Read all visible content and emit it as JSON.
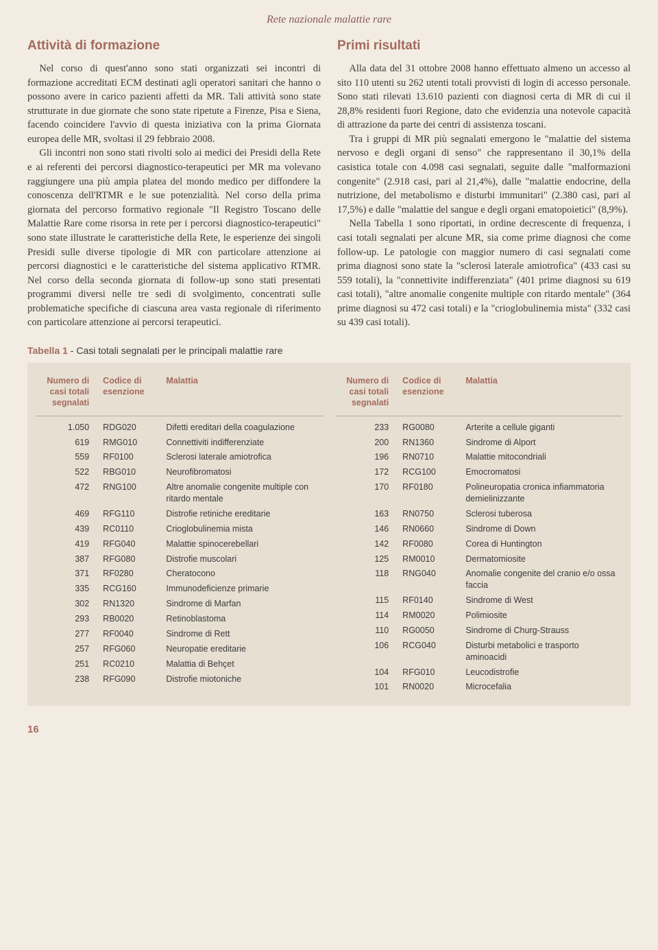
{
  "journal_header": "Rete nazionale malattie rare",
  "left_section": {
    "title": "Attività di formazione",
    "paragraphs": [
      "Nel corso di quest'anno sono stati organizzati sei incontri di formazione accreditati ECM destinati agli operatori sanitari che hanno o possono avere in carico pazienti affetti da MR. Tali attività sono state strutturate in due giornate che sono state ripetute a Firenze, Pisa e Siena, facendo coincidere l'avvio di questa iniziativa con la prima Giornata europea delle MR, svoltasi il 29 febbraio 2008.",
      "Gli incontri non sono stati rivolti solo ai medici dei Presidi della Rete e ai referenti dei percorsi diagnostico-terapeutici per MR ma volevano raggiungere una più ampia platea del mondo medico per diffondere la conoscenza dell'RTMR e le sue potenzialità. Nel corso della prima giornata del percorso formativo regionale \"Il Registro Toscano delle Malattie Rare come risorsa in rete per i percorsi diagnostico-terapeutici\" sono state illustrate le caratteristiche della Rete, le esperienze dei singoli Presidi sulle diverse tipologie di MR con particolare attenzione ai percorsi diagnostici e le caratteristiche del sistema applicativo RTMR. Nel corso della seconda giornata di follow-up sono stati presentati programmi diversi nelle tre sedi di svolgimento, concentrati sulle problematiche specifiche di ciascuna area vasta regionale di riferimento con particolare attenzione ai percorsi terapeutici."
    ]
  },
  "right_section": {
    "title": "Primi risultati",
    "paragraphs": [
      "Alla data del 31 ottobre 2008 hanno effettuato almeno un accesso al sito 110 utenti su 262 utenti totali provvisti di login di accesso personale. Sono stati rilevati 13.610 pazienti con diagnosi certa di MR di cui il 28,8% residenti fuori Regione, dato che evidenzia una notevole capacità di attrazione da parte dei centri di assistenza toscani.",
      "Tra i gruppi di MR più segnalati emergono le \"malattie del sistema nervoso e degli organi di senso\" che rappresentano il 30,1% della casistica totale con 4.098 casi segnalati, seguite dalle \"malformazioni congenite\" (2.918 casi, pari al 21,4%), dalle \"malattie endocrine, della nutrizione, del metabolismo e disturbi immunitari\" (2.380 casi, pari al 17,5%) e dalle \"malattie del sangue e degli organi ematopoietici\" (8,9%).",
      "Nella Tabella 1 sono riportati, in ordine decrescente di frequenza, i casi totali segnalati per alcune MR, sia come prime diagnosi che come follow-up. Le patologie con maggior numero di casi segnalati come prima diagnosi sono state la \"sclerosi laterale amiotrofica\" (433 casi su 559 totali), la \"connettivite indifferenziata\" (401 prime diagnosi su 619 casi totali), \"altre anomalie congenite multiple con ritardo mentale\" (364 prime diagnosi su 472 casi totali) e la \"crioglobulinemia mista\" (332 casi su 439 casi totali)."
    ]
  },
  "table": {
    "caption_label": "Tabella 1",
    "caption_text": " - Casi totali segnalati per le principali malattie rare",
    "headers": {
      "num": "Numero di casi totali segnalati",
      "code": "Codice di esenzione",
      "disease": "Malattia"
    },
    "left_rows": [
      {
        "num": "1.050",
        "code": "RDG020",
        "disease": "Difetti ereditari della coagulazione"
      },
      {
        "num": "619",
        "code": "RMG010",
        "disease": "Connettiviti indifferenziate"
      },
      {
        "num": "559",
        "code": "RF0100",
        "disease": "Sclerosi laterale amiotrofica"
      },
      {
        "num": "522",
        "code": "RBG010",
        "disease": "Neurofibromatosi"
      },
      {
        "num": "472",
        "code": "RNG100",
        "disease": "Altre anomalie congenite multiple con ritardo mentale"
      },
      {
        "num": "469",
        "code": "RFG110",
        "disease": "Distrofie retiniche ereditarie"
      },
      {
        "num": "439",
        "code": "RC0110",
        "disease": "Crioglobulinemia mista"
      },
      {
        "num": "419",
        "code": "RFG040",
        "disease": "Malattie spinocerebellari"
      },
      {
        "num": "387",
        "code": "RFG080",
        "disease": "Distrofie muscolari"
      },
      {
        "num": "371",
        "code": "RF0280",
        "disease": "Cheratocono"
      },
      {
        "num": "335",
        "code": "RCG160",
        "disease": "Immunodeficienze primarie"
      },
      {
        "num": "302",
        "code": "RN1320",
        "disease": "Sindrome di Marfan"
      },
      {
        "num": "293",
        "code": "RB0020",
        "disease": "Retinoblastoma"
      },
      {
        "num": "277",
        "code": "RF0040",
        "disease": "Sindrome di Rett"
      },
      {
        "num": "257",
        "code": "RFG060",
        "disease": "Neuropatie ereditarie"
      },
      {
        "num": "251",
        "code": "RC0210",
        "disease": "Malattia di Behçet"
      },
      {
        "num": "238",
        "code": "RFG090",
        "disease": "Distrofie miotoniche"
      }
    ],
    "right_rows": [
      {
        "num": "233",
        "code": "RG0080",
        "disease": "Arterite a cellule giganti"
      },
      {
        "num": "200",
        "code": "RN1360",
        "disease": "Sindrome di Alport"
      },
      {
        "num": "196",
        "code": "RN0710",
        "disease": "Malattie mitocondriali"
      },
      {
        "num": "172",
        "code": "RCG100",
        "disease": "Emocromatosi"
      },
      {
        "num": "170",
        "code": "RF0180",
        "disease": "Polineuropatia cronica infiammatoria demielinizzante"
      },
      {
        "num": "163",
        "code": "RN0750",
        "disease": "Sclerosi tuberosa"
      },
      {
        "num": "146",
        "code": "RN0660",
        "disease": "Sindrome di Down"
      },
      {
        "num": "142",
        "code": "RF0080",
        "disease": "Corea di Huntington"
      },
      {
        "num": "125",
        "code": "RM0010",
        "disease": "Dermatomiosite"
      },
      {
        "num": "118",
        "code": "RNG040",
        "disease": "Anomalie congenite del cranio e/o ossa faccia"
      },
      {
        "num": "115",
        "code": "RF0140",
        "disease": "Sindrome di West"
      },
      {
        "num": "114",
        "code": "RM0020",
        "disease": "Polimiosite"
      },
      {
        "num": "110",
        "code": "RG0050",
        "disease": "Sindrome di Churg-Strauss"
      },
      {
        "num": "106",
        "code": "RCG040",
        "disease": "Disturbi metabolici e trasporto aminoacidi"
      },
      {
        "num": "104",
        "code": "RFG010",
        "disease": "Leucodistrofie"
      },
      {
        "num": "101",
        "code": "RN0020",
        "disease": "Microcefalia"
      }
    ]
  },
  "page_number": "16"
}
